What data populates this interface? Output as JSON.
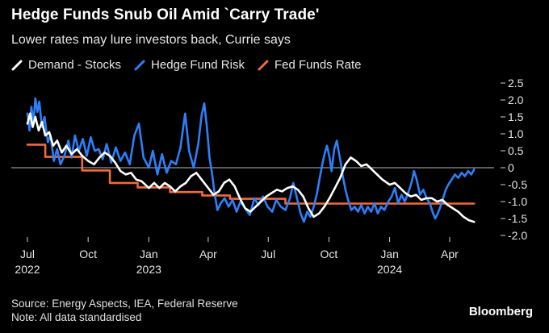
{
  "header": {
    "title": "Hedge Funds Snub Oil Amid `Carry Trade'",
    "subtitle": "Lower rates may lure investors back, Currie says"
  },
  "footer": {
    "source": "Source: Energy Aspects, IEA, Federal Reserve",
    "note": "Note: All data standardised",
    "brand": "Bloomberg"
  },
  "chart_data": {
    "type": "line",
    "title": "Hedge Funds Snub Oil Amid `Carry Trade'",
    "subtitle": "Lower rates may lure investors back, Currie says",
    "legend_position": "top-left",
    "grid": false,
    "zero_line": true,
    "y_axis_side": "right",
    "ylim": [
      -2.0,
      2.5
    ],
    "yticks": [
      2.5,
      2.0,
      1.5,
      1.0,
      0.5,
      0,
      -0.5,
      -1.0,
      -1.5,
      -2.0
    ],
    "ytick_labels": [
      "2.5",
      "2.0",
      "1.5",
      "1.0",
      "0.5",
      "0",
      "-0.5",
      "-1.0",
      "-1.5",
      "-2.0"
    ],
    "xlim": [
      "2022-07-01",
      "2024-05-20"
    ],
    "xticks": [
      {
        "date": "2022-07-01",
        "label": "Jul",
        "year": "2022"
      },
      {
        "date": "2022-10-01",
        "label": "Oct",
        "year": ""
      },
      {
        "date": "2023-01-01",
        "label": "Jan",
        "year": "2023"
      },
      {
        "date": "2023-04-01",
        "label": "Apr",
        "year": ""
      },
      {
        "date": "2023-07-01",
        "label": "Jul",
        "year": ""
      },
      {
        "date": "2023-10-01",
        "label": "Oct",
        "year": ""
      },
      {
        "date": "2024-01-01",
        "label": "Jan",
        "year": "2024"
      },
      {
        "date": "2024-04-01",
        "label": "Apr",
        "year": ""
      }
    ],
    "series": [
      {
        "name": "Demand - Stocks",
        "color": "#ffffff",
        "step": false,
        "points": [
          [
            "2022-07-01",
            1.3
          ],
          [
            "2022-07-05",
            1.6
          ],
          [
            "2022-07-09",
            1.2
          ],
          [
            "2022-07-13",
            1.5
          ],
          [
            "2022-07-18",
            1.1
          ],
          [
            "2022-07-23",
            1.35
          ],
          [
            "2022-07-28",
            0.95
          ],
          [
            "2022-08-03",
            1.05
          ],
          [
            "2022-08-09",
            0.65
          ],
          [
            "2022-08-15",
            0.8
          ],
          [
            "2022-08-22",
            0.45
          ],
          [
            "2022-08-29",
            0.65
          ],
          [
            "2022-09-06",
            0.4
          ],
          [
            "2022-09-14",
            0.55
          ],
          [
            "2022-09-22",
            0.35
          ],
          [
            "2022-10-01",
            0.2
          ],
          [
            "2022-10-10",
            0.1
          ],
          [
            "2022-10-18",
            0.3
          ],
          [
            "2022-10-26",
            0.45
          ],
          [
            "2022-11-03",
            0.35
          ],
          [
            "2022-11-11",
            0.15
          ],
          [
            "2022-11-19",
            -0.1
          ],
          [
            "2022-11-27",
            -0.2
          ],
          [
            "2022-12-05",
            -0.15
          ],
          [
            "2022-12-13",
            -0.35
          ],
          [
            "2022-12-21",
            -0.4
          ],
          [
            "2023-01-01",
            -0.6
          ],
          [
            "2023-01-09",
            -0.45
          ],
          [
            "2023-01-17",
            -0.6
          ],
          [
            "2023-01-25",
            -0.45
          ],
          [
            "2023-02-02",
            -0.55
          ],
          [
            "2023-02-10",
            -0.7
          ],
          [
            "2023-02-18",
            -0.55
          ],
          [
            "2023-02-26",
            -0.45
          ],
          [
            "2023-03-06",
            -0.25
          ],
          [
            "2023-03-14",
            -0.15
          ],
          [
            "2023-03-22",
            -0.35
          ],
          [
            "2023-04-01",
            -0.6
          ],
          [
            "2023-04-09",
            -0.8
          ],
          [
            "2023-04-17",
            -0.7
          ],
          [
            "2023-04-25",
            -0.45
          ],
          [
            "2023-05-03",
            -0.35
          ],
          [
            "2023-05-11",
            -0.55
          ],
          [
            "2023-05-19",
            -0.9
          ],
          [
            "2023-05-27",
            -1.2
          ],
          [
            "2023-06-04",
            -1.3
          ],
          [
            "2023-06-12",
            -1.15
          ],
          [
            "2023-06-20",
            -1.0
          ],
          [
            "2023-06-28",
            -0.85
          ],
          [
            "2023-07-06",
            -0.75
          ],
          [
            "2023-07-14",
            -0.65
          ],
          [
            "2023-07-22",
            -0.7
          ],
          [
            "2023-07-30",
            -0.6
          ],
          [
            "2023-08-07",
            -0.55
          ],
          [
            "2023-08-15",
            -0.65
          ],
          [
            "2023-08-23",
            -0.85
          ],
          [
            "2023-08-31",
            -1.2
          ],
          [
            "2023-09-08",
            -1.45
          ],
          [
            "2023-09-16",
            -1.35
          ],
          [
            "2023-09-24",
            -1.15
          ],
          [
            "2023-10-02",
            -0.9
          ],
          [
            "2023-10-10",
            -0.6
          ],
          [
            "2023-10-18",
            -0.3
          ],
          [
            "2023-10-26",
            0.1
          ],
          [
            "2023-11-03",
            0.3
          ],
          [
            "2023-11-11",
            0.2
          ],
          [
            "2023-11-19",
            0.05
          ],
          [
            "2023-11-27",
            0.1
          ],
          [
            "2023-12-05",
            -0.05
          ],
          [
            "2023-12-13",
            -0.2
          ],
          [
            "2023-12-21",
            -0.35
          ],
          [
            "2024-01-01",
            -0.5
          ],
          [
            "2024-01-09",
            -0.45
          ],
          [
            "2024-01-17",
            -0.6
          ],
          [
            "2024-01-25",
            -0.75
          ],
          [
            "2024-02-02",
            -0.85
          ],
          [
            "2024-02-10",
            -0.8
          ],
          [
            "2024-02-18",
            -0.95
          ],
          [
            "2024-02-26",
            -0.9
          ],
          [
            "2024-03-05",
            -0.9
          ],
          [
            "2024-03-13",
            -1.0
          ],
          [
            "2024-03-21",
            -0.95
          ],
          [
            "2024-03-29",
            -1.1
          ],
          [
            "2024-04-06",
            -1.2
          ],
          [
            "2024-04-14",
            -1.3
          ],
          [
            "2024-04-22",
            -1.45
          ],
          [
            "2024-04-30",
            -1.55
          ],
          [
            "2024-05-08",
            -1.6
          ]
        ]
      },
      {
        "name": "Hedge Fund Risk",
        "color": "#2d7ff9",
        "step": false,
        "points": [
          [
            "2022-07-01",
            1.6
          ],
          [
            "2022-07-04",
            1.1
          ],
          [
            "2022-07-07",
            1.8
          ],
          [
            "2022-07-10",
            1.3
          ],
          [
            "2022-07-13",
            2.05
          ],
          [
            "2022-07-16",
            1.65
          ],
          [
            "2022-07-19",
            1.95
          ],
          [
            "2022-07-23",
            1.2
          ],
          [
            "2022-07-27",
            1.5
          ],
          [
            "2022-08-01",
            0.75
          ],
          [
            "2022-08-05",
            0.95
          ],
          [
            "2022-08-10",
            0.2
          ],
          [
            "2022-08-15",
            0.55
          ],
          [
            "2022-08-20",
            0.1
          ],
          [
            "2022-08-26",
            0.35
          ],
          [
            "2022-09-01",
            0.8
          ],
          [
            "2022-09-06",
            0.3
          ],
          [
            "2022-09-11",
            0.95
          ],
          [
            "2022-09-17",
            0.5
          ],
          [
            "2022-09-23",
            0.85
          ],
          [
            "2022-09-29",
            0.35
          ],
          [
            "2022-10-05",
            0.9
          ],
          [
            "2022-10-11",
            0.5
          ],
          [
            "2022-10-17",
            0.55
          ],
          [
            "2022-10-23",
            0.25
          ],
          [
            "2022-10-29",
            0.7
          ],
          [
            "2022-11-05",
            0.15
          ],
          [
            "2022-11-12",
            0.6
          ],
          [
            "2022-11-19",
            0.2
          ],
          [
            "2022-11-26",
            0.45
          ],
          [
            "2022-12-03",
            0.1
          ],
          [
            "2022-12-10",
            0.95
          ],
          [
            "2022-12-17",
            1.3
          ],
          [
            "2022-12-24",
            0.3
          ],
          [
            "2023-01-01",
            0.0
          ],
          [
            "2023-01-07",
            0.5
          ],
          [
            "2023-01-14",
            -0.2
          ],
          [
            "2023-01-21",
            0.4
          ],
          [
            "2023-01-28",
            -0.15
          ],
          [
            "2023-02-04",
            0.2
          ],
          [
            "2023-02-11",
            0.1
          ],
          [
            "2023-02-18",
            0.6
          ],
          [
            "2023-02-25",
            1.6
          ],
          [
            "2023-03-03",
            0.5
          ],
          [
            "2023-03-10",
            0.0
          ],
          [
            "2023-03-17",
            0.7
          ],
          [
            "2023-03-22",
            1.55
          ],
          [
            "2023-03-26",
            1.9
          ],
          [
            "2023-03-30",
            1.2
          ],
          [
            "2023-04-03",
            0.3
          ],
          [
            "2023-04-07",
            -0.2
          ],
          [
            "2023-04-11",
            -0.8
          ],
          [
            "2023-04-15",
            -1.25
          ],
          [
            "2023-04-20",
            -1.05
          ],
          [
            "2023-04-26",
            -0.9
          ],
          [
            "2023-05-02",
            -1.15
          ],
          [
            "2023-05-08",
            -0.95
          ],
          [
            "2023-05-14",
            -1.3
          ],
          [
            "2023-05-20",
            -1.0
          ],
          [
            "2023-05-27",
            -1.2
          ],
          [
            "2023-06-03",
            -1.4
          ],
          [
            "2023-06-10",
            -0.9
          ],
          [
            "2023-06-16",
            -1.1
          ],
          [
            "2023-06-23",
            -0.85
          ],
          [
            "2023-06-30",
            -1.15
          ],
          [
            "2023-07-07",
            -1.3
          ],
          [
            "2023-07-13",
            -0.95
          ],
          [
            "2023-07-20",
            -1.15
          ],
          [
            "2023-07-27",
            -1.25
          ],
          [
            "2023-08-03",
            -0.9
          ],
          [
            "2023-08-08",
            -0.45
          ],
          [
            "2023-08-13",
            -0.85
          ],
          [
            "2023-08-19",
            -1.35
          ],
          [
            "2023-08-24",
            -1.6
          ],
          [
            "2023-08-29",
            -1.3
          ],
          [
            "2023-09-03",
            -1.45
          ],
          [
            "2023-09-08",
            -1.15
          ],
          [
            "2023-09-13",
            -0.75
          ],
          [
            "2023-09-18",
            -0.2
          ],
          [
            "2023-09-22",
            0.2
          ],
          [
            "2023-09-25",
            0.45
          ],
          [
            "2023-09-28",
            0.65
          ],
          [
            "2023-10-02",
            0.3
          ],
          [
            "2023-10-05",
            -0.1
          ],
          [
            "2023-10-09",
            0.55
          ],
          [
            "2023-10-13",
            0.8
          ],
          [
            "2023-10-16",
            0.45
          ],
          [
            "2023-10-19",
            0.15
          ],
          [
            "2023-10-22",
            -0.25
          ],
          [
            "2023-10-26",
            -0.65
          ],
          [
            "2023-10-30",
            -0.95
          ],
          [
            "2023-11-04",
            -1.25
          ],
          [
            "2023-11-09",
            -1.15
          ],
          [
            "2023-11-14",
            -1.3
          ],
          [
            "2023-11-19",
            -1.1
          ],
          [
            "2023-11-24",
            -1.35
          ],
          [
            "2023-11-29",
            -1.15
          ],
          [
            "2023-12-04",
            -1.3
          ],
          [
            "2023-12-09",
            -1.05
          ],
          [
            "2023-12-14",
            -1.35
          ],
          [
            "2023-12-19",
            -1.15
          ],
          [
            "2023-12-24",
            -1.25
          ],
          [
            "2023-12-30",
            -1.0
          ],
          [
            "2024-01-04",
            -0.85
          ],
          [
            "2024-01-09",
            -0.6
          ],
          [
            "2024-01-14",
            -1.05
          ],
          [
            "2024-01-19",
            -0.8
          ],
          [
            "2024-01-24",
            -1.0
          ],
          [
            "2024-01-29",
            -0.75
          ],
          [
            "2024-02-03",
            -0.45
          ],
          [
            "2024-02-07",
            -0.1
          ],
          [
            "2024-02-11",
            -0.35
          ],
          [
            "2024-02-16",
            -0.8
          ],
          [
            "2024-02-21",
            -0.65
          ],
          [
            "2024-02-26",
            -0.9
          ],
          [
            "2024-03-02",
            -1.05
          ],
          [
            "2024-03-06",
            -1.3
          ],
          [
            "2024-03-10",
            -1.5
          ],
          [
            "2024-03-14",
            -1.35
          ],
          [
            "2024-03-18",
            -1.15
          ],
          [
            "2024-03-22",
            -0.9
          ],
          [
            "2024-03-26",
            -0.65
          ],
          [
            "2024-03-30",
            -0.5
          ],
          [
            "2024-04-04",
            -0.35
          ],
          [
            "2024-04-09",
            -0.2
          ],
          [
            "2024-04-14",
            -0.3
          ],
          [
            "2024-04-19",
            -0.15
          ],
          [
            "2024-04-24",
            -0.25
          ],
          [
            "2024-04-29",
            -0.1
          ],
          [
            "2024-05-04",
            -0.2
          ],
          [
            "2024-05-08",
            -0.05
          ]
        ]
      },
      {
        "name": "Fed Funds Rate",
        "color": "#f26a3d",
        "step": true,
        "points": [
          [
            "2022-07-01",
            0.68
          ],
          [
            "2022-07-28",
            0.32
          ],
          [
            "2022-09-22",
            -0.08
          ],
          [
            "2022-11-03",
            -0.45
          ],
          [
            "2022-12-15",
            -0.58
          ],
          [
            "2023-02-02",
            -0.72
          ],
          [
            "2023-03-23",
            -0.82
          ],
          [
            "2023-05-04",
            -0.92
          ],
          [
            "2023-07-27",
            -1.06
          ],
          [
            "2024-05-08",
            -1.06
          ]
        ]
      }
    ]
  }
}
